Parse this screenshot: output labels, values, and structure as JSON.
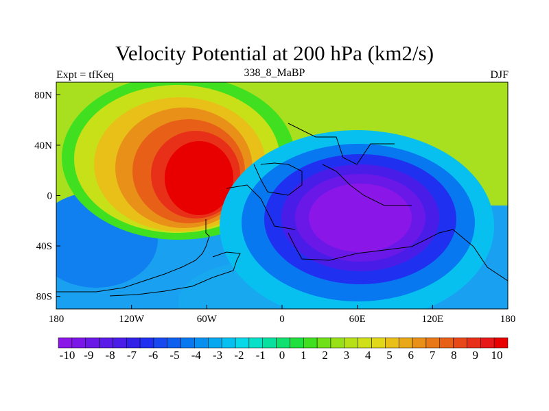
{
  "title": "Velocity Potential at 200 hPa (km2/s)",
  "left_label": "Expt = tfKeq",
  "center_label": "338_8_MaBP",
  "right_label": "DJF",
  "chart_data": {
    "type": "heatmap",
    "title": "Velocity Potential at 200 hPa (km2/s)",
    "x_ticks": [
      "180",
      "120W",
      "60W",
      "0",
      "60E",
      "120E",
      "180"
    ],
    "y_ticks": [
      "80N",
      "40N",
      "0",
      "40S",
      "80S"
    ],
    "x_range": [
      -180,
      180
    ],
    "y_range": [
      -90,
      90
    ],
    "colorbar_labels": [
      "-10",
      "-9",
      "-8",
      "-7",
      "-6",
      "-5",
      "-4",
      "-3",
      "-2",
      "-1",
      "0",
      "1",
      "2",
      "3",
      "4",
      "5",
      "6",
      "7",
      "8",
      "9",
      "10"
    ],
    "colorbar_range": [
      -10,
      10
    ],
    "colorbar_step": 0.5,
    "colorbar_colors": [
      "#8a16e8",
      "#7a16e8",
      "#6a18e8",
      "#5a1ae8",
      "#4a1ce8",
      "#3020e8",
      "#2030f0",
      "#1848f0",
      "#1060f0",
      "#0878f0",
      "#0890f0",
      "#08a8f0",
      "#08c0f0",
      "#08d8e8",
      "#08e0c8",
      "#08e0a0",
      "#10e070",
      "#20e040",
      "#40e020",
      "#70e018",
      "#98e018",
      "#b8e018",
      "#d0e018",
      "#e0d818",
      "#e8c018",
      "#e8a818",
      "#e89018",
      "#e87818",
      "#e86018",
      "#e84818",
      "#e83018",
      "#e81818",
      "#e80000"
    ],
    "features": [
      {
        "name": "positive-center",
        "lon": -85,
        "lat": 12,
        "value": 10
      },
      {
        "name": "negative-center",
        "lon": 50,
        "lat": -18,
        "value": -10
      }
    ]
  }
}
